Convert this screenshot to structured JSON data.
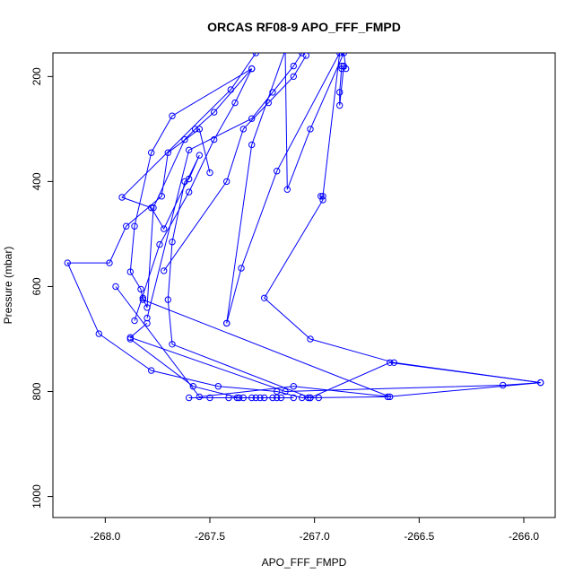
{
  "chart_data": {
    "type": "line",
    "title": "ORCAS RF08-9 APO_FFF_FMPD",
    "xlabel": "APO_FFF_FMPD",
    "ylabel": "Pressure (mbar)",
    "xlim": [
      -268.25,
      -265.85
    ],
    "ylim": [
      1040,
      155
    ],
    "y_reversed": true,
    "x_ticks": [
      -268.0,
      -267.5,
      -267.0,
      -266.5,
      -266.0
    ],
    "x_tick_labels": [
      "-268.0",
      "-267.5",
      "-267.0",
      "-266.5",
      "-266.0"
    ],
    "y_ticks": [
      200,
      400,
      600,
      800,
      1000
    ],
    "y_tick_labels": [
      "200",
      "400",
      "600",
      "800",
      "1000"
    ],
    "color": "#0000ff",
    "grid": false,
    "series": [
      {
        "x": [
          -267.28,
          -267.4,
          -267.92,
          -267.78,
          -267.72,
          -267.55,
          -267.6,
          -267.62,
          -267.68,
          -267.7,
          -267.68,
          -267.02,
          -266.64,
          -265.92,
          -266.1,
          -267.14,
          -267.88,
          -267.8
        ],
        "y": [
          155,
          225,
          430,
          450,
          490,
          350,
          395,
          400,
          515,
          625,
          710,
          812,
          745,
          783,
          788,
          800,
          697,
          670
        ]
      },
      {
        "x": [
          -267.82,
          -267.8,
          -267.77,
          -267.62,
          -267.57,
          -267.48,
          -267.3,
          -267.68,
          -267.78,
          -267.86,
          -267.88,
          -267.83,
          -267.82,
          -266.64,
          -267.1,
          -267.55,
          -267.95
        ],
        "y": [
          622,
          640,
          450,
          320,
          300,
          268,
          185,
          275,
          345,
          485,
          572,
          605,
          625,
          810,
          790,
          810,
          600
        ]
      },
      {
        "x": [
          -267.5,
          -267.55,
          -267.7,
          -267.73,
          -267.9,
          -267.98,
          -268.18,
          -268.03,
          -267.78,
          -267.46,
          -267.18,
          -267.06,
          -267.02,
          -266.98
        ],
        "y": [
          383,
          300,
          345,
          428,
          485,
          555,
          555,
          690,
          760,
          790,
          800,
          812,
          812,
          812
        ]
      },
      {
        "x": [
          -267.42,
          -267.35,
          -267.18,
          -266.88,
          -266.96,
          -266.97,
          -266.96,
          -267.24,
          -267.02,
          -266.62,
          -265.92,
          -266.65,
          -267.03
        ],
        "y": [
          670,
          565,
          380,
          155,
          428,
          428,
          435,
          622,
          700,
          745,
          783,
          810,
          812
        ]
      },
      {
        "x": [
          -267.42,
          -267.3,
          -267.14,
          -267.13,
          -267.02,
          -266.86,
          -266.85,
          -266.87,
          -266.87,
          -266.88,
          -266.88,
          -266.86
        ],
        "y": [
          670,
          330,
          150,
          415,
          300,
          155,
          185,
          185,
          180,
          230,
          255,
          180
        ]
      },
      {
        "x": [
          -267.8,
          -267.6,
          -267.3,
          -267.2,
          -267.1,
          -267.06
        ],
        "y": [
          660,
          340,
          280,
          230,
          180,
          155
        ]
      },
      {
        "x": [
          -267.86,
          -267.74,
          -267.6,
          -267.48,
          -267.38,
          -267.3
        ],
        "y": [
          665,
          520,
          420,
          320,
          250,
          185
        ]
      },
      {
        "x": [
          -267.6,
          -267.5,
          -267.41,
          -267.37,
          -267.34,
          -267.28,
          -267.24,
          -267.2,
          -267.16,
          -267.1
        ],
        "y": [
          812,
          812,
          812,
          812,
          812,
          812,
          812,
          812,
          812,
          812
        ]
      },
      {
        "x": [
          -267.88,
          -267.58,
          -267.36,
          -267.3,
          -267.26,
          -267.18
        ],
        "y": [
          700,
          790,
          812,
          812,
          812,
          812
        ]
      },
      {
        "x": [
          -267.72,
          -267.42,
          -267.34,
          -267.22,
          -267.1,
          -267.04
        ],
        "y": [
          570,
          400,
          300,
          250,
          200,
          160
        ]
      }
    ]
  }
}
